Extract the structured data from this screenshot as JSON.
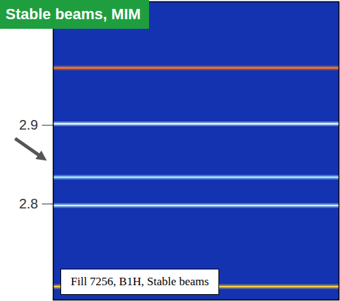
{
  "chart_data": {
    "type": "spectrogram",
    "title": "Stable beams, MIM",
    "annotation": "Fill 7256, B1H, Stable beams",
    "y": [
      2.973,
      2.902,
      2.834,
      2.798,
      2.695
    ],
    "colors": [
      "#ff7a1a",
      "#e6ffff",
      "#a8ecff",
      "#c8f6ff",
      "#ffd040"
    ],
    "ylim": [
      2.678,
      3.057
    ],
    "yticks": [
      2.8,
      2.9
    ],
    "tick_labels": "y"
  }
}
